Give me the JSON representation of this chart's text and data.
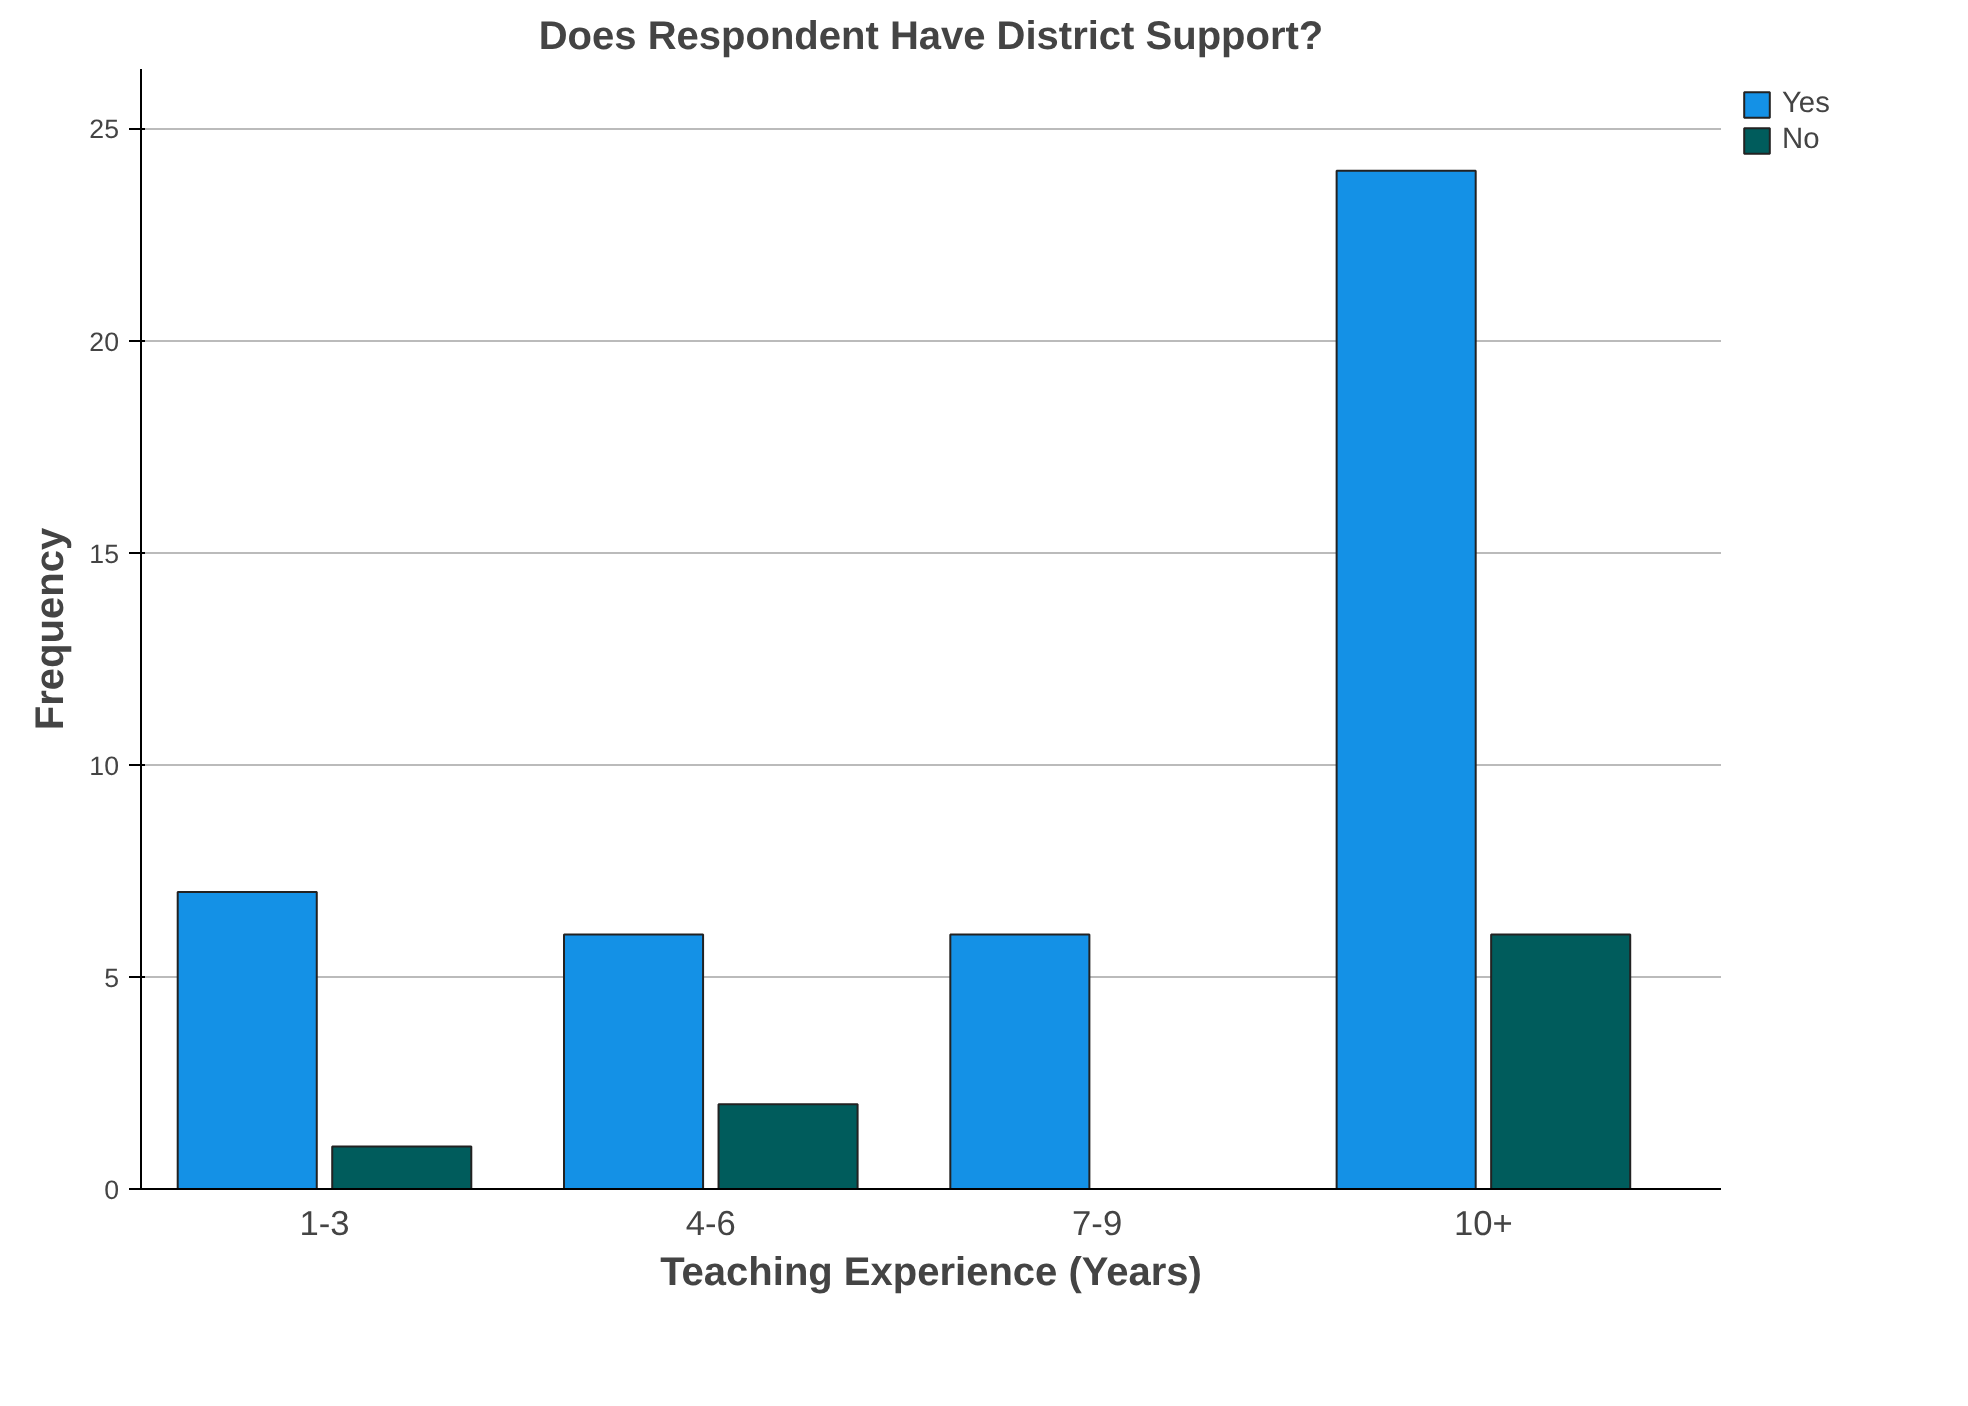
{
  "chart_data": {
    "type": "bar",
    "title": "Does Respondent Have District Support?",
    "xlabel": "Teaching Experience (Years)",
    "ylabel": "Frequency",
    "categories": [
      "1-3",
      "4-6",
      "7-9",
      "10+"
    ],
    "series": [
      {
        "name": "Yes",
        "color": "#1491e6",
        "values": [
          7,
          6,
          6,
          24
        ]
      },
      {
        "name": "No",
        "color": "#005c5c",
        "values": [
          1,
          2,
          null,
          6
        ]
      }
    ],
    "ylim": [
      0,
      26.4
    ],
    "yticks": [
      0,
      5,
      10,
      15,
      20,
      25
    ],
    "grid": "y",
    "legend": "top right"
  }
}
